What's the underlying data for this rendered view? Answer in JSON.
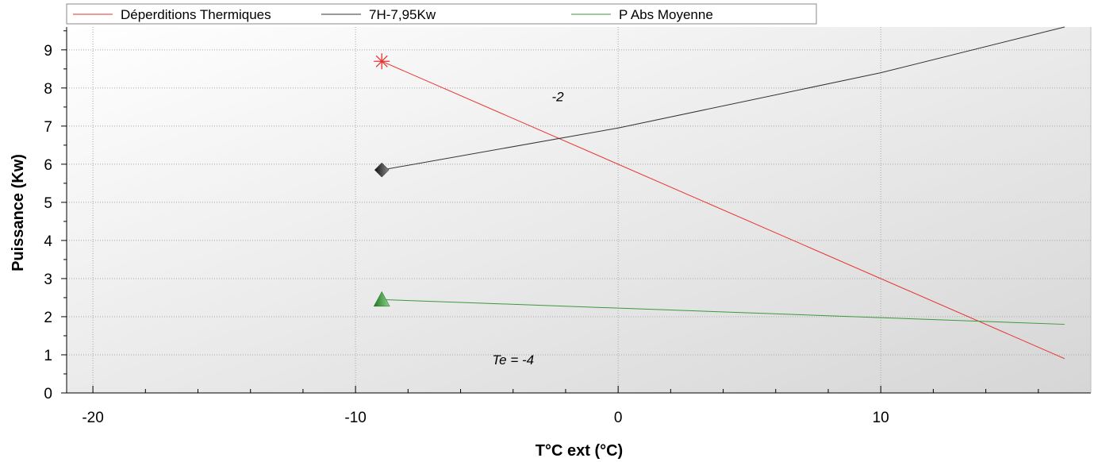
{
  "chart_data": {
    "type": "line",
    "title": "",
    "xlabel": "T°C ext (°C)",
    "ylabel": "Puissance (Kw)",
    "xlim": [
      -21,
      18
    ],
    "ylim": [
      0,
      9.6
    ],
    "x_ticks": [
      -20,
      -10,
      0,
      10
    ],
    "y_ticks": [
      0,
      1,
      2,
      3,
      4,
      5,
      6,
      7,
      8,
      9
    ],
    "grid": true,
    "legend_position": "top",
    "series": [
      {
        "name": "Déperditions Thermiques",
        "color": "#e8322e",
        "marker": "asterisk",
        "x": [
          -9,
          17
        ],
        "y": [
          8.7,
          0.9
        ]
      },
      {
        "name": "7H-7,95Kw",
        "color": "#333333",
        "marker": "diamond",
        "x": [
          -9,
          0,
          10,
          17
        ],
        "y": [
          5.85,
          6.95,
          8.4,
          9.6
        ]
      },
      {
        "name": "P Abs Moyenne",
        "color": "#3a9a3a",
        "marker": "triangle",
        "x": [
          -9,
          17
        ],
        "y": [
          2.45,
          1.8
        ]
      }
    ],
    "annotations": [
      {
        "text": "-2",
        "x": -2.3,
        "y": 7.65
      },
      {
        "text": "Te = -4",
        "x": -4.0,
        "y": 0.75
      }
    ]
  }
}
